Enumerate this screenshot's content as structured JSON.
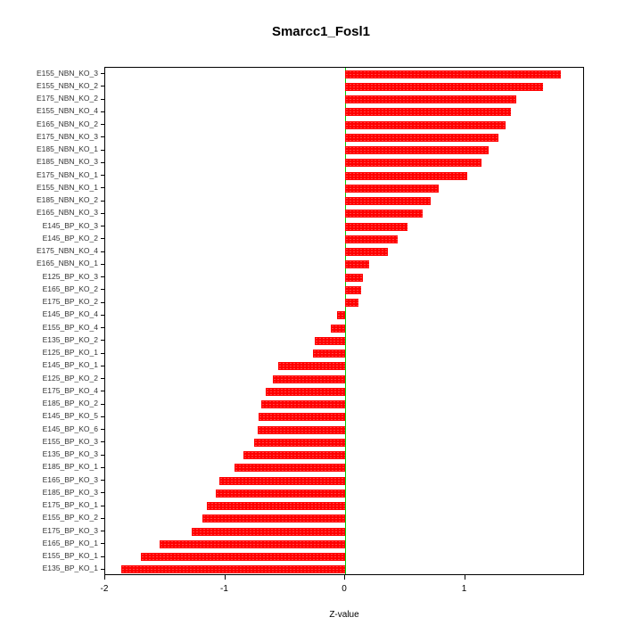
{
  "chart_data": {
    "type": "bar",
    "orientation": "horizontal",
    "title": "Smarcc1_Fosl1",
    "xlabel": "Z-value",
    "xlim": [
      -2,
      2
    ],
    "x_ticks": [
      -2,
      -1,
      0,
      1
    ],
    "bar_color": "#ff0000",
    "zero_line_color": "#00cc00",
    "grid": false,
    "legend": "none",
    "categories": [
      "E155_NBN_KO_3",
      "E155_NBN_KO_2",
      "E175_NBN_KO_2",
      "E155_NBN_KO_4",
      "E165_NBN_KO_2",
      "E175_NBN_KO_3",
      "E185_NBN_KO_1",
      "E185_NBN_KO_3",
      "E175_NBN_KO_1",
      "E155_NBN_KO_1",
      "E185_NBN_KO_2",
      "E165_NBN_KO_3",
      "E145_BP_KO_3",
      "E145_BP_KO_2",
      "E175_NBN_KO_4",
      "E165_NBN_KO_1",
      "E125_BP_KO_3",
      "E165_BP_KO_2",
      "E175_BP_KO_2",
      "E145_BP_KO_4",
      "E155_BP_KO_4",
      "E135_BP_KO_2",
      "E125_BP_KO_1",
      "E145_BP_KO_1",
      "E125_BP_KO_2",
      "E175_BP_KO_4",
      "E185_BP_KO_2",
      "E145_BP_KO_5",
      "E145_BP_KO_6",
      "E155_BP_KO_3",
      "E135_BP_KO_3",
      "E185_BP_KO_1",
      "E165_BP_KO_3",
      "E185_BP_KO_3",
      "E175_BP_KO_1",
      "E155_BP_KO_2",
      "E175_BP_KO_3",
      "E165_BP_KO_1",
      "E155_BP_KO_1",
      "E135_BP_KO_1"
    ],
    "values": [
      1.8,
      1.65,
      1.43,
      1.38,
      1.34,
      1.28,
      1.2,
      1.14,
      1.02,
      0.78,
      0.71,
      0.65,
      0.52,
      0.44,
      0.36,
      0.2,
      0.15,
      0.13,
      0.11,
      -0.07,
      -0.12,
      -0.25,
      -0.27,
      -0.56,
      -0.6,
      -0.66,
      -0.7,
      -0.72,
      -0.73,
      -0.76,
      -0.85,
      -0.92,
      -1.05,
      -1.08,
      -1.15,
      -1.19,
      -1.28,
      -1.55,
      -1.7,
      -1.87
    ]
  }
}
